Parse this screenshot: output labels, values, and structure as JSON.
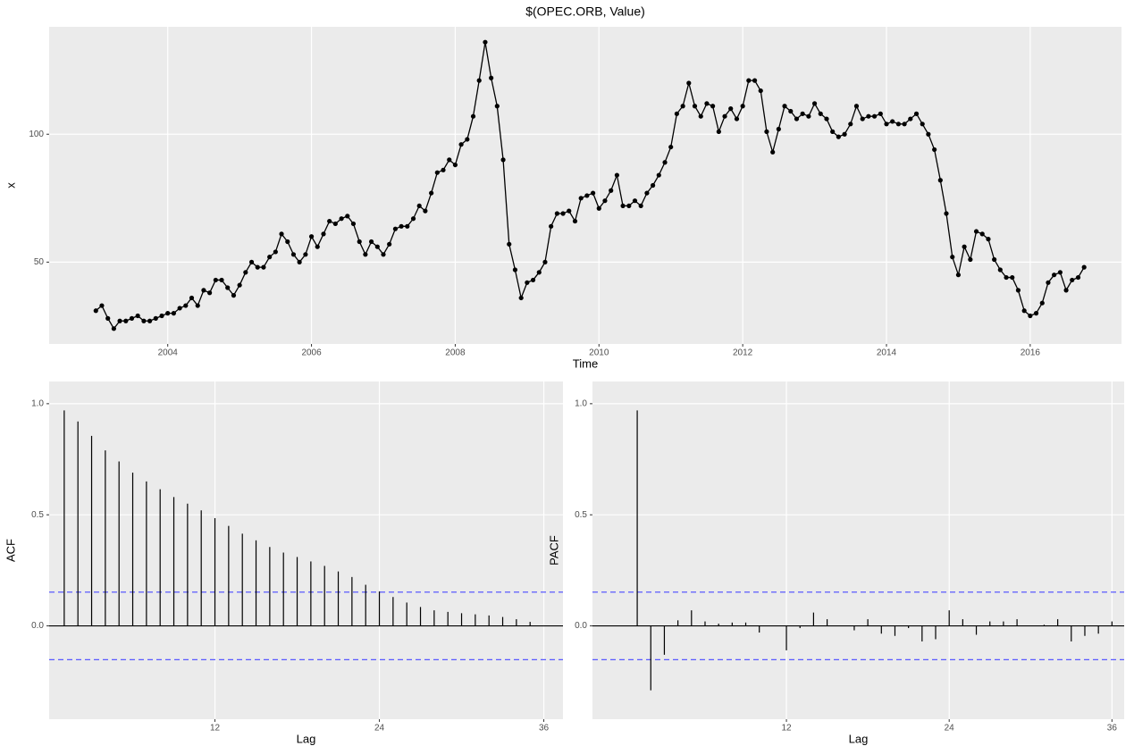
{
  "chart_data": [
    {
      "type": "line",
      "title": "$(OPEC.ORB, Value)",
      "x_label": "Time",
      "y_label": "x",
      "color": "#000000",
      "grid": true,
      "x": [
        2003,
        2003.083,
        2003.167,
        2003.25,
        2003.333,
        2003.417,
        2003.5,
        2003.583,
        2003.667,
        2003.75,
        2003.833,
        2003.917,
        2004,
        2004.083,
        2004.167,
        2004.25,
        2004.333,
        2004.417,
        2004.5,
        2004.583,
        2004.667,
        2004.75,
        2004.833,
        2004.917,
        2005,
        2005.083,
        2005.167,
        2005.25,
        2005.333,
        2005.417,
        2005.5,
        2005.583,
        2005.667,
        2005.75,
        2005.833,
        2005.917,
        2006,
        2006.083,
        2006.167,
        2006.25,
        2006.333,
        2006.417,
        2006.5,
        2006.583,
        2006.667,
        2006.75,
        2006.833,
        2006.917,
        2007,
        2007.083,
        2007.167,
        2007.25,
        2007.333,
        2007.417,
        2007.5,
        2007.583,
        2007.667,
        2007.75,
        2007.833,
        2007.917,
        2008,
        2008.083,
        2008.167,
        2008.25,
        2008.333,
        2008.417,
        2008.5,
        2008.583,
        2008.667,
        2008.75,
        2008.833,
        2008.917,
        2009,
        2009.083,
        2009.167,
        2009.25,
        2009.333,
        2009.417,
        2009.5,
        2009.583,
        2009.667,
        2009.75,
        2009.833,
        2009.917,
        2010,
        2010.083,
        2010.167,
        2010.25,
        2010.333,
        2010.417,
        2010.5,
        2010.583,
        2010.667,
        2010.75,
        2010.833,
        2010.917,
        2011,
        2011.083,
        2011.167,
        2011.25,
        2011.333,
        2011.417,
        2011.5,
        2011.583,
        2011.667,
        2011.75,
        2011.833,
        2011.917,
        2012,
        2012.083,
        2012.167,
        2012.25,
        2012.333,
        2012.417,
        2012.5,
        2012.583,
        2012.667,
        2012.75,
        2012.833,
        2012.917,
        2013,
        2013.083,
        2013.167,
        2013.25,
        2013.333,
        2013.417,
        2013.5,
        2013.583,
        2013.667,
        2013.75,
        2013.833,
        2013.917,
        2014,
        2014.083,
        2014.167,
        2014.25,
        2014.333,
        2014.417,
        2014.5,
        2014.583,
        2014.667,
        2014.75,
        2014.833,
        2014.917,
        2015,
        2015.083,
        2015.167,
        2015.25,
        2015.333,
        2015.417,
        2015.5,
        2015.583,
        2015.667,
        2015.75,
        2015.833,
        2015.917,
        2016,
        2016.083,
        2016.167,
        2016.25,
        2016.333,
        2016.417,
        2016.5,
        2016.583,
        2016.667,
        2016.75
      ],
      "values": [
        31,
        33,
        28,
        24,
        27,
        27,
        28,
        29,
        27,
        27,
        28,
        29,
        30,
        30,
        32,
        33,
        36,
        33,
        39,
        38,
        43,
        43,
        40,
        37,
        41,
        46,
        50,
        48,
        48,
        52,
        54,
        61,
        58,
        53,
        50,
        53,
        60,
        56,
        61,
        66,
        65,
        67,
        68,
        65,
        58,
        53,
        58,
        56,
        53,
        57,
        63,
        64,
        64,
        67,
        72,
        70,
        77,
        85,
        86,
        90,
        88,
        96,
        98,
        107,
        121,
        136,
        122,
        111,
        90,
        57,
        47,
        36,
        42,
        43,
        46,
        50,
        64,
        69,
        69,
        70,
        66,
        75,
        76,
        77,
        71,
        74,
        78,
        84,
        72,
        72,
        74,
        72,
        77,
        80,
        84,
        89,
        95,
        108,
        111,
        120,
        111,
        107,
        112,
        111,
        101,
        107,
        110,
        106,
        111,
        121,
        121,
        117,
        101,
        93,
        102,
        111,
        109,
        106,
        108,
        107,
        112,
        108,
        106,
        101,
        99,
        100,
        104,
        111,
        106,
        107,
        107,
        108,
        104,
        105,
        104,
        104,
        106,
        108,
        104,
        100,
        94,
        82,
        69,
        52,
        45,
        56,
        51,
        62,
        61,
        59,
        51,
        47,
        44,
        44,
        39,
        31,
        29,
        30,
        34,
        42,
        45,
        46,
        39,
        43,
        44,
        48
      ],
      "xlim": [
        2002.35,
        2017.27
      ],
      "xticks": [
        2004,
        2006,
        2008,
        2010,
        2012,
        2014,
        2016
      ],
      "ylim": [
        18,
        142
      ],
      "yticks": [
        50,
        100
      ]
    },
    {
      "type": "acf",
      "x_label": "Lag",
      "y_label": "ACF",
      "color": "#000000",
      "grid": true,
      "x": [
        1,
        2,
        3,
        4,
        5,
        6,
        7,
        8,
        9,
        10,
        11,
        12,
        13,
        14,
        15,
        16,
        17,
        18,
        19,
        20,
        21,
        22,
        23,
        24,
        25,
        26,
        27,
        28,
        29,
        30,
        31,
        32,
        33,
        34,
        35
      ],
      "values": [
        0.97,
        0.92,
        0.855,
        0.79,
        0.74,
        0.69,
        0.65,
        0.615,
        0.58,
        0.55,
        0.52,
        0.485,
        0.45,
        0.415,
        0.385,
        0.355,
        0.33,
        0.31,
        0.29,
        0.27,
        0.245,
        0.22,
        0.185,
        0.155,
        0.13,
        0.105,
        0.085,
        0.07,
        0.063,
        0.057,
        0.052,
        0.047,
        0.04,
        0.03,
        0.018
      ],
      "hlines": [
        0.152,
        -0.152
      ],
      "hline_color": "#5a5aff",
      "xlim": [
        -0.1,
        37.4
      ],
      "xticks": [
        12,
        24,
        36
      ],
      "ylim": [
        -0.42,
        1.1
      ],
      "yticks": [
        {
          "value": 0,
          "label": "0.0"
        },
        {
          "value": 0.5,
          "label": "0.5"
        },
        {
          "value": 1,
          "label": "1.0"
        }
      ]
    },
    {
      "type": "acf",
      "x_label": "Lag",
      "y_label": "PACF",
      "color": "#000000",
      "grid": true,
      "x": [
        1,
        2,
        3,
        4,
        5,
        6,
        7,
        8,
        9,
        10,
        11,
        12,
        13,
        14,
        15,
        16,
        17,
        18,
        19,
        20,
        21,
        22,
        23,
        24,
        25,
        26,
        27,
        28,
        29,
        30,
        31,
        32,
        33,
        34,
        35,
        36
      ],
      "values": [
        0.97,
        -0.29,
        -0.13,
        0.025,
        0.07,
        0.02,
        0.01,
        0.015,
        0.015,
        -0.03,
        0.002,
        -0.11,
        -0.01,
        0.06,
        0.03,
        0.002,
        -0.02,
        0.03,
        -0.035,
        -0.045,
        -0.01,
        -0.07,
        -0.06,
        0.07,
        0.03,
        -0.04,
        0.02,
        0.02,
        0.03,
        0.002,
        0.005,
        0.03,
        -0.07,
        -0.045,
        -0.035,
        0.02
      ],
      "hlines": [
        0.152,
        -0.152
      ],
      "hline_color": "#5a5aff",
      "xlim": [
        -2.3,
        36.9
      ],
      "xticks": [
        12,
        24,
        36
      ],
      "ylim": [
        -0.42,
        1.1
      ],
      "yticks": [
        {
          "value": 0,
          "label": "0.0"
        },
        {
          "value": 0.5,
          "label": "0.5"
        },
        {
          "value": 1,
          "label": "1.0"
        }
      ]
    }
  ]
}
